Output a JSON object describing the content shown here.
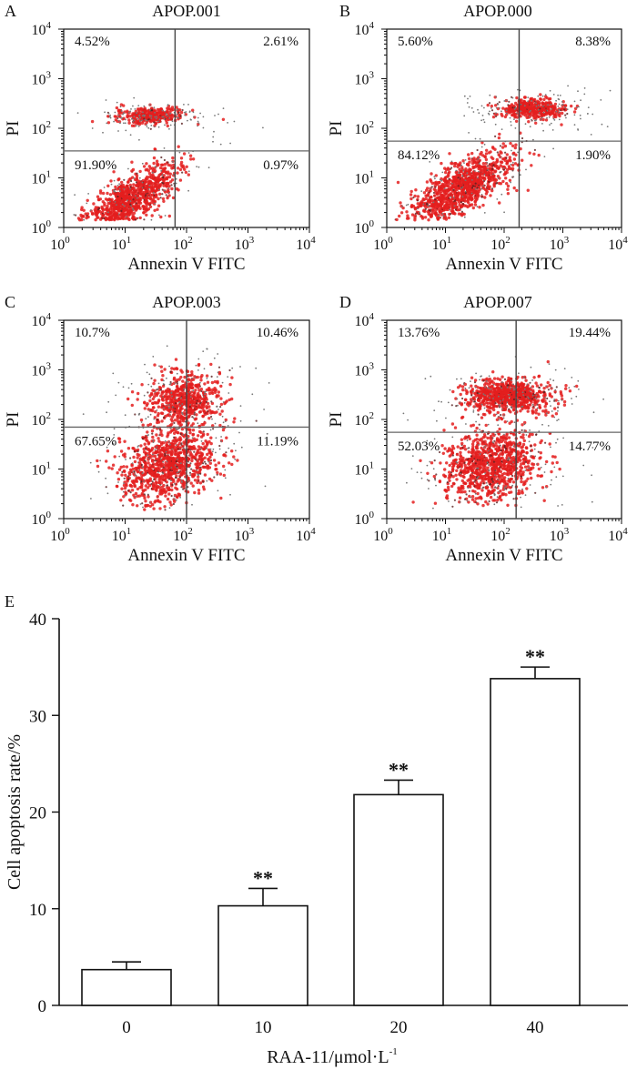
{
  "flow_panels": [
    {
      "label": "A",
      "title": "APOP.001",
      "quadrants": [
        "4.52%",
        "2.61%",
        "91.90%",
        "0.97%"
      ],
      "gate_x": 65,
      "gate_y": 35,
      "populations": [
        {
          "cx": 10,
          "cy": 3,
          "sx": 0.42,
          "sy": 0.4,
          "rho": 0.8,
          "n": 1100
        },
        {
          "cx": 25,
          "cy": 180,
          "sx": 0.28,
          "sy": 0.08,
          "rho": 0.0,
          "n": 320
        }
      ],
      "xlabel": "Annexin V FITC",
      "ylabel": "PI"
    },
    {
      "label": "B",
      "title": "APOP.000",
      "quadrants": [
        "5.60%",
        "8.38%",
        "84.12%",
        "1.90%"
      ],
      "gate_x": 180,
      "gate_y": 55,
      "populations": [
        {
          "cx": 18,
          "cy": 6,
          "sx": 0.45,
          "sy": 0.38,
          "rho": 0.75,
          "n": 1100
        },
        {
          "cx": 300,
          "cy": 250,
          "sx": 0.3,
          "sy": 0.1,
          "rho": 0.0,
          "n": 380
        }
      ],
      "xlabel": "Annexin V FITC",
      "ylabel": "PI"
    },
    {
      "label": "C",
      "title": "APOP.003",
      "quadrants": [
        "10.7%",
        "10.46%",
        "67.65%",
        "11.19%"
      ],
      "gate_x": 100,
      "gate_y": 70,
      "populations": [
        {
          "cx": 50,
          "cy": 12,
          "sx": 0.38,
          "sy": 0.38,
          "rho": 0.3,
          "n": 1000
        },
        {
          "cx": 90,
          "cy": 250,
          "sx": 0.3,
          "sy": 0.25,
          "rho": 0.1,
          "n": 600
        }
      ],
      "xlabel": "Annexin V FITC",
      "ylabel": "PI"
    },
    {
      "label": "D",
      "title": "APOP.007",
      "quadrants": [
        "13.76%",
        "19.44%",
        "52.03%",
        "14.77%"
      ],
      "gate_x": 160,
      "gate_y": 55,
      "populations": [
        {
          "cx": 60,
          "cy": 12,
          "sx": 0.4,
          "sy": 0.35,
          "rho": 0.2,
          "n": 1000
        },
        {
          "cx": 120,
          "cy": 300,
          "sx": 0.35,
          "sy": 0.16,
          "rho": 0.0,
          "n": 800
        }
      ],
      "xlabel": "Annexin V FITC",
      "ylabel": "PI"
    }
  ],
  "chart_data": {
    "type": "bar",
    "panel_label": "E",
    "categories": [
      "0",
      "10",
      "20",
      "40"
    ],
    "values": [
      3.7,
      10.3,
      21.8,
      33.8
    ],
    "errors": [
      0.8,
      1.8,
      1.5,
      1.2
    ],
    "significance": [
      "",
      "**",
      "**",
      "**"
    ],
    "ylabel": "Cell apoptosis rate/%",
    "xlabel": "RAA-11/μmol·L",
    "xlabel_sup": "-1",
    "ylim": [
      0,
      40
    ],
    "yticks": [
      0,
      10,
      20,
      30,
      40
    ]
  }
}
